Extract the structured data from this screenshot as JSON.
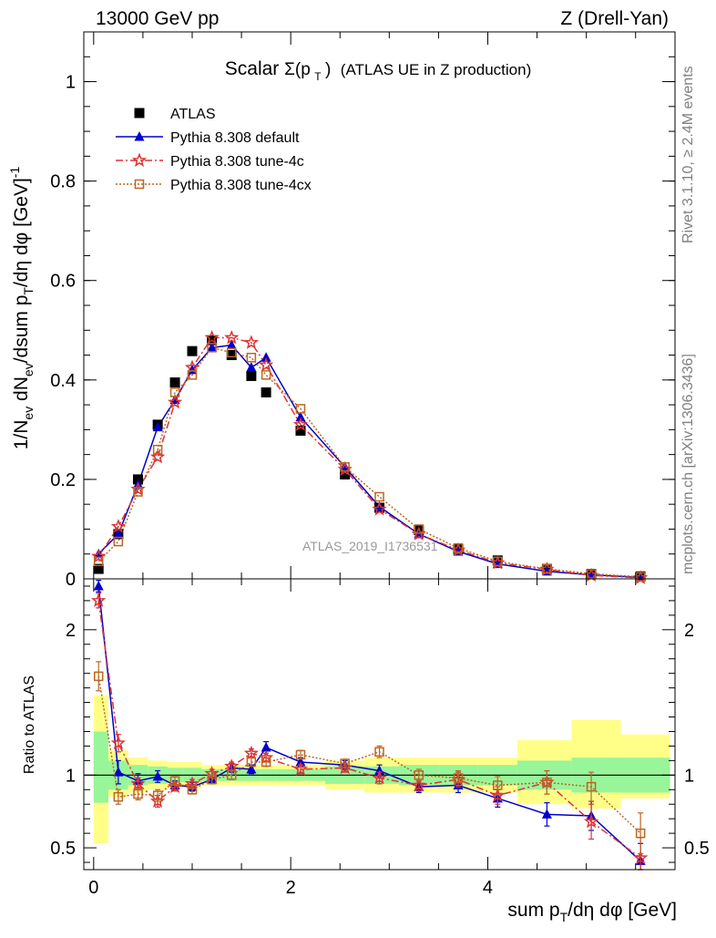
{
  "header": {
    "left": "13000 GeV pp",
    "right": "Z (Drell-Yan)"
  },
  "side": {
    "rivet": "Rivet 3.1.10, ≥ 2.4M events",
    "mcplots": "mcplots.cern.ch [arXiv:1306.3436]"
  },
  "watermark": "ATLAS_2019_I1736531",
  "colors": {
    "data": "#000000",
    "default": "#0000cc",
    "tune4c": "#dd3333",
    "tune4cx": "#bb6622",
    "band_green": "#99f599",
    "band_yellow": "#ffff88"
  },
  "chart_data": [
    {
      "type": "scatter",
      "title": "Scalar Σ(p_T) (ATLAS UE in Z production)",
      "title_parts": {
        "a": "Scalar ",
        "b": "Σ(p",
        "c": "T",
        "d": ")",
        "e": "(ATLAS UE in Z production)"
      },
      "ylabel": "1/N_ev dN_ev/dsum p_T/dη dφ [GeV]^-1",
      "ylabel_parts": {
        "a": "1/N",
        "b": "ev",
        "c": " dN",
        "d": "ev",
        "e": "/dsum p",
        "f": "T",
        "g": "/dη dφ  [GeV]",
        "h": "-1"
      },
      "xlim": [
        -0.1,
        5.9
      ],
      "ylim": [
        0,
        1.1
      ],
      "yticks": [
        0,
        0.2,
        0.4,
        0.6,
        0.8,
        1
      ],
      "ytick_labels": [
        "0",
        "0.2",
        "0.4",
        "0.6",
        "0.8",
        "1"
      ],
      "legend_position": "top-left",
      "x": [
        0.05,
        0.25,
        0.45,
        0.65,
        0.825,
        1.0,
        1.2,
        1.4,
        1.6,
        1.75,
        2.1,
        2.55,
        2.9,
        3.3,
        3.7,
        4.1,
        4.6,
        5.05,
        5.55
      ],
      "series": [
        {
          "name": "ATLAS",
          "key": "data",
          "marker": "square",
          "y": [
            0.02,
            0.09,
            0.2,
            0.31,
            0.395,
            0.458,
            0.48,
            0.45,
            0.408,
            0.375,
            0.298,
            0.21,
            0.143,
            0.098,
            0.06,
            0.037,
            0.02,
            0.01,
            0.005
          ]
        },
        {
          "name": "Pythia 8.308 default",
          "key": "default",
          "marker": "triangle",
          "y": [
            0.05,
            0.09,
            0.19,
            0.305,
            0.36,
            0.42,
            0.465,
            0.47,
            0.425,
            0.445,
            0.325,
            0.225,
            0.145,
            0.09,
            0.055,
            0.03,
            0.015,
            0.008,
            0.003
          ]
        },
        {
          "name": "Pythia 8.308 tune-4c",
          "key": "tune4c",
          "marker": "star",
          "y": [
            0.045,
            0.105,
            0.18,
            0.245,
            0.355,
            0.425,
            0.485,
            0.485,
            0.475,
            0.43,
            0.31,
            0.22,
            0.14,
            0.09,
            0.058,
            0.032,
            0.019,
            0.007,
            0.002
          ]
        },
        {
          "name": "Pythia 8.308 tune-4cx",
          "key": "tune4cx",
          "marker": "open-square",
          "y": [
            0.035,
            0.075,
            0.175,
            0.26,
            0.375,
            0.41,
            0.465,
            0.455,
            0.445,
            0.41,
            0.342,
            0.225,
            0.165,
            0.1,
            0.062,
            0.035,
            0.02,
            0.01,
            0.004
          ]
        }
      ]
    },
    {
      "type": "line",
      "ylabel": "Ratio to ATLAS",
      "xlabel": "sum p_T/dη dφ [GeV]",
      "xlabel_parts": {
        "a": "sum p",
        "b": "T",
        "c": "/dη dφ [GeV]"
      },
      "xlim": [
        -0.1,
        5.9
      ],
      "ylim": [
        0.35,
        2.35
      ],
      "xticks": [
        0,
        2,
        4
      ],
      "xtick_labels": [
        "0",
        "2",
        "4"
      ],
      "yticks": [
        0.5,
        1,
        2
      ],
      "ytick_labels": [
        "0.5",
        "1",
        "2"
      ],
      "reference_line": 1,
      "bins": [
        [
          0,
          0.15
        ],
        [
          0.15,
          0.35
        ],
        [
          0.35,
          0.55
        ],
        [
          0.55,
          0.75
        ],
        [
          0.75,
          0.9
        ],
        [
          0.9,
          1.1
        ],
        [
          1.1,
          1.3
        ],
        [
          1.3,
          1.5
        ],
        [
          1.5,
          1.7
        ],
        [
          1.7,
          1.85
        ],
        [
          1.85,
          2.35
        ],
        [
          2.35,
          2.75
        ],
        [
          2.75,
          3.1
        ],
        [
          3.1,
          3.5
        ],
        [
          3.5,
          3.9
        ],
        [
          3.9,
          4.3
        ],
        [
          4.3,
          4.85
        ],
        [
          4.85,
          5.35
        ],
        [
          5.35,
          5.85
        ]
      ],
      "band_green": [
        [
          0.81,
          1.3
        ],
        [
          0.9,
          1.1
        ],
        [
          0.93,
          1.07
        ],
        [
          0.94,
          1.06
        ],
        [
          0.95,
          1.05
        ],
        [
          0.95,
          1.05
        ],
        [
          0.96,
          1.04
        ],
        [
          0.96,
          1.04
        ],
        [
          0.96,
          1.04
        ],
        [
          0.96,
          1.04
        ],
        [
          0.96,
          1.04
        ],
        [
          0.94,
          1.06
        ],
        [
          0.94,
          1.06
        ],
        [
          0.93,
          1.07
        ],
        [
          0.93,
          1.07
        ],
        [
          0.93,
          1.07
        ],
        [
          0.9,
          1.1
        ],
        [
          0.88,
          1.12
        ],
        [
          0.88,
          1.12
        ]
      ],
      "band_yellow": [
        [
          0.53,
          1.55
        ],
        [
          0.85,
          1.17
        ],
        [
          0.88,
          1.12
        ],
        [
          0.9,
          1.1
        ],
        [
          0.91,
          1.09
        ],
        [
          0.91,
          1.09
        ],
        [
          0.93,
          1.07
        ],
        [
          0.93,
          1.07
        ],
        [
          0.93,
          1.07
        ],
        [
          0.93,
          1.07
        ],
        [
          0.93,
          1.07
        ],
        [
          0.9,
          1.1
        ],
        [
          0.88,
          1.12
        ],
        [
          0.88,
          1.12
        ],
        [
          0.88,
          1.12
        ],
        [
          0.88,
          1.12
        ],
        [
          0.8,
          1.24
        ],
        [
          0.77,
          1.38
        ],
        [
          0.84,
          1.28
        ]
      ],
      "series": [
        {
          "key": "default",
          "y": [
            2.3,
            1.02,
            0.96,
            0.99,
            0.93,
            0.92,
            0.97,
            1.05,
            1.04,
            1.19,
            1.09,
            1.07,
            1.03,
            0.92,
            0.93,
            0.84,
            0.73,
            0.72,
            0.41
          ],
          "err": [
            0.04,
            0.08,
            0.05,
            0.04,
            0.03,
            0.03,
            0.03,
            0.03,
            0.03,
            0.04,
            0.03,
            0.03,
            0.04,
            0.04,
            0.05,
            0.06,
            0.08,
            0.1,
            0.12
          ]
        },
        {
          "key": "tune4c",
          "y": [
            2.2,
            1.22,
            0.94,
            0.82,
            0.92,
            0.94,
            1.01,
            1.06,
            1.15,
            1.12,
            1.04,
            1.05,
            0.98,
            0.93,
            0.97,
            0.86,
            0.95,
            0.68,
            0.43
          ],
          "err": [
            0.05,
            0.06,
            0.04,
            0.04,
            0.03,
            0.03,
            0.03,
            0.03,
            0.03,
            0.03,
            0.03,
            0.03,
            0.04,
            0.04,
            0.05,
            0.06,
            0.08,
            0.12,
            0.14
          ]
        },
        {
          "key": "tune4cx",
          "y": [
            1.68,
            0.85,
            0.87,
            0.86,
            0.96,
            0.9,
            0.97,
            1.0,
            1.09,
            1.09,
            1.14,
            1.08,
            1.16,
            1.0,
            0.98,
            0.93,
            0.95,
            0.92,
            0.6
          ],
          "err": [
            0.1,
            0.05,
            0.04,
            0.04,
            0.03,
            0.03,
            0.03,
            0.03,
            0.03,
            0.03,
            0.03,
            0.03,
            0.04,
            0.04,
            0.05,
            0.06,
            0.08,
            0.1,
            0.14
          ]
        }
      ]
    }
  ]
}
